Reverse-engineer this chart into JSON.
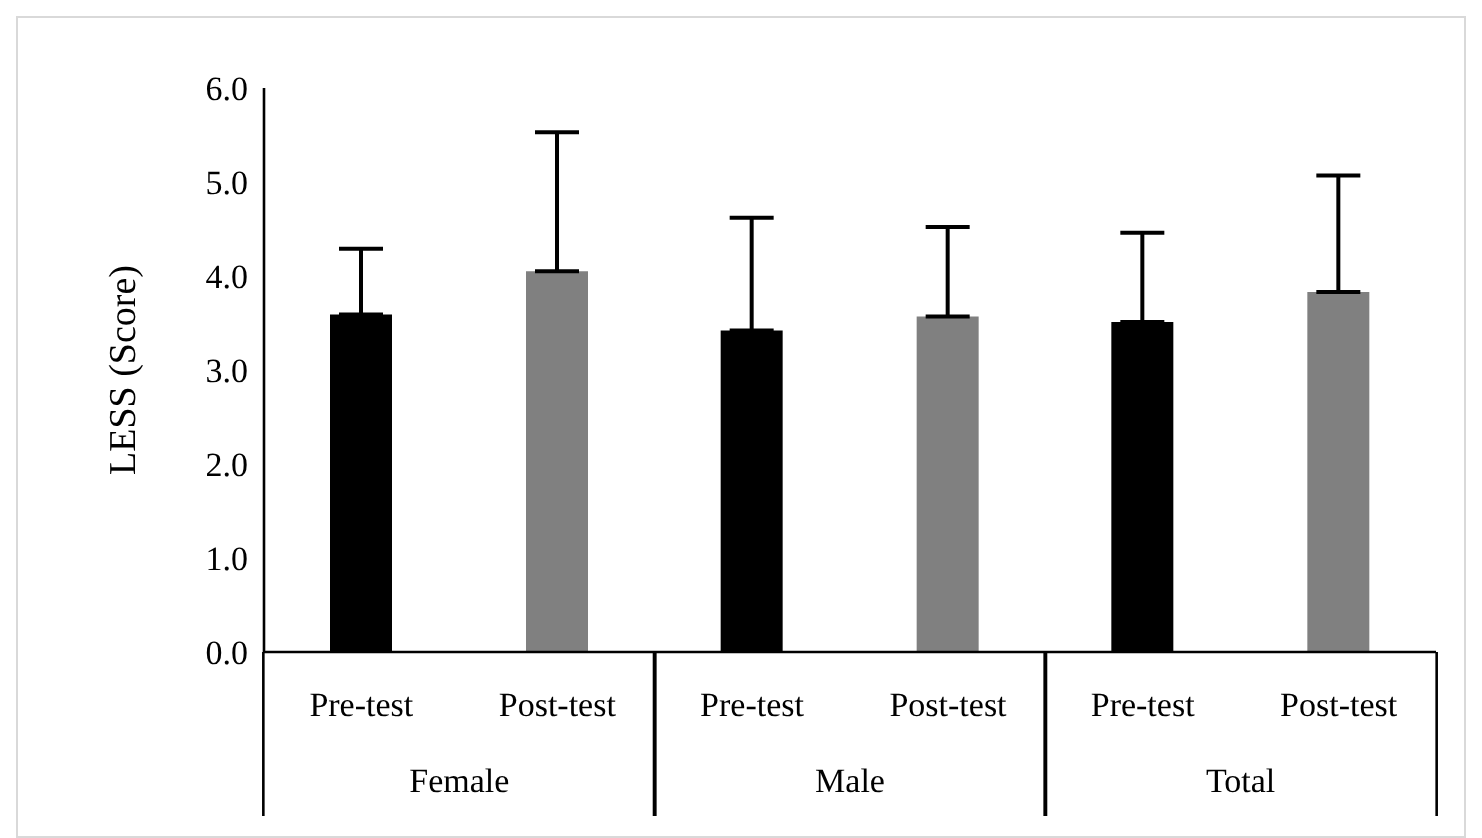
{
  "chart_data": {
    "type": "bar",
    "ylabel": "LESS (Score)",
    "categories": [
      "Female",
      "Male",
      "Total"
    ],
    "series": [
      {
        "name": "Pre-test",
        "color": "#000000",
        "values": [
          3.59,
          3.42,
          3.51
        ],
        "errors": [
          [
            3.59,
            4.29
          ],
          [
            3.42,
            4.62
          ],
          [
            3.51,
            4.46
          ]
        ]
      },
      {
        "name": "Post-test",
        "color": "#808080",
        "values": [
          4.05,
          3.57,
          3.83
        ],
        "errors": [
          [
            4.05,
            5.53
          ],
          [
            3.57,
            4.52
          ],
          [
            3.83,
            5.07
          ]
        ]
      }
    ],
    "ylim": [
      0,
      6
    ],
    "yticks": [
      {
        "value": 0,
        "label": "0.0"
      },
      {
        "value": 1,
        "label": "1.0"
      },
      {
        "value": 2,
        "label": "2.0"
      },
      {
        "value": 3,
        "label": "3.0"
      },
      {
        "value": 4,
        "label": "4.0"
      },
      {
        "value": 5,
        "label": "5.0"
      },
      {
        "value": 6,
        "label": "6.0"
      }
    ],
    "grid": false,
    "legend": false
  }
}
